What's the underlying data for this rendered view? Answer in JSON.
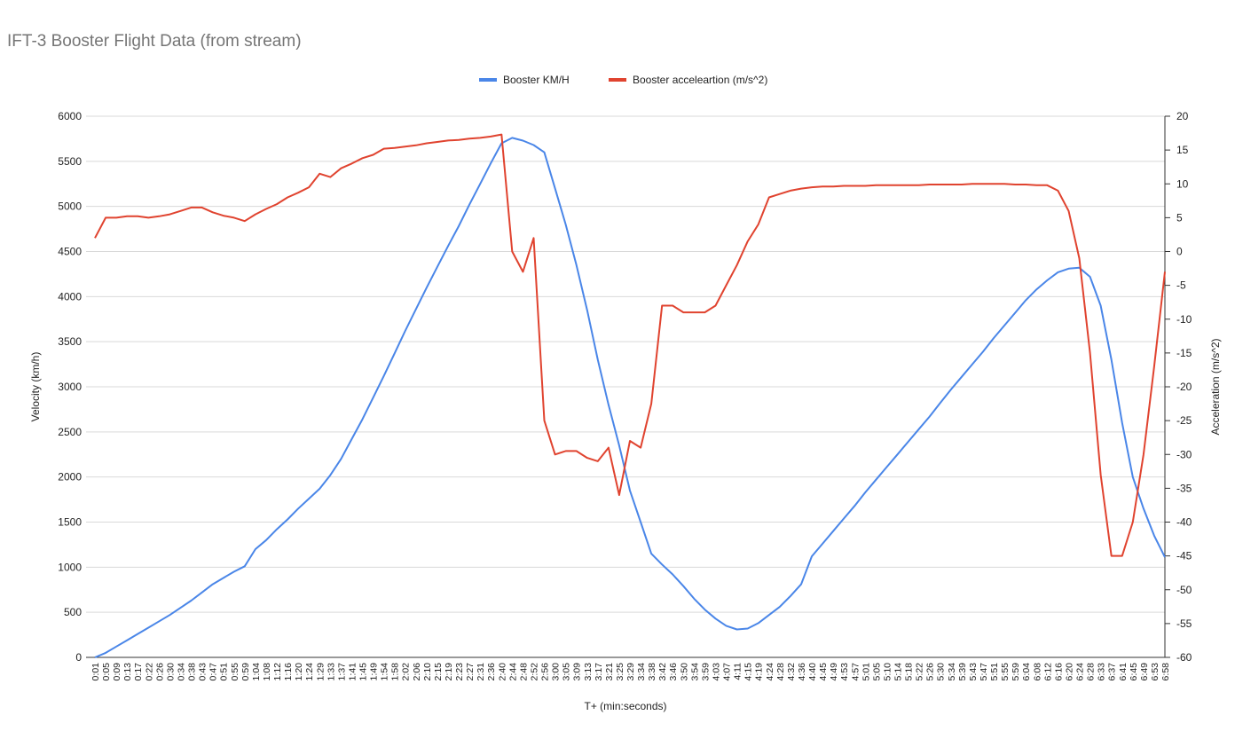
{
  "chart_data": {
    "type": "line",
    "title": "IFT-3 Booster Flight Data (from stream)",
    "x_label": "T+ (min:seconds)",
    "y_label": "Velocity (km/h)",
    "y2_label": "Acceleration (m/s^2)",
    "categories": [
      "0:01",
      "0:05",
      "0:09",
      "0:13",
      "0:17",
      "0:22",
      "0:26",
      "0:30",
      "0:34",
      "0:38",
      "0:43",
      "0:47",
      "0:51",
      "0:55",
      "0:59",
      "1:04",
      "1:08",
      "1:12",
      "1:16",
      "1:20",
      "1:24",
      "1:29",
      "1:33",
      "1:37",
      "1:41",
      "1:45",
      "1:49",
      "1:54",
      "1:58",
      "2:02",
      "2:06",
      "2:10",
      "2:15",
      "2:19",
      "2:23",
      "2:27",
      "2:31",
      "2:36",
      "2:40",
      "2:44",
      "2:48",
      "2:52",
      "2:56",
      "3:00",
      "3:05",
      "3:09",
      "3:13",
      "3:17",
      "3:21",
      "3:25",
      "3:29",
      "3:34",
      "3:38",
      "3:42",
      "3:46",
      "3:50",
      "3:54",
      "3:59",
      "4:03",
      "4:07",
      "4:11",
      "4:15",
      "4:19",
      "4:24",
      "4:28",
      "4:32",
      "4:36",
      "4:40",
      "4:45",
      "4:49",
      "4:53",
      "4:57",
      "5:01",
      "5:05",
      "5:10",
      "5:14",
      "5:18",
      "5:22",
      "5:26",
      "5:30",
      "5:34",
      "5:39",
      "5:43",
      "5:47",
      "5:51",
      "5:55",
      "5:59",
      "6:04",
      "6:08",
      "6:12",
      "6:16",
      "6:20",
      "6:24",
      "6:28",
      "6:33",
      "6:37",
      "6:41",
      "6:45",
      "6:49",
      "6:53",
      "6:58"
    ],
    "series": [
      {
        "name": "Booster KM/H",
        "color": "#4a86e8",
        "axis": "y",
        "values": [
          0,
          50,
          120,
          190,
          260,
          330,
          400,
          470,
          550,
          630,
          720,
          810,
          880,
          950,
          1010,
          1200,
          1300,
          1420,
          1530,
          1650,
          1760,
          1870,
          2020,
          2200,
          2420,
          2640,
          2880,
          3120,
          3370,
          3620,
          3860,
          4100,
          4330,
          4560,
          4780,
          5020,
          5250,
          5480,
          5700,
          5760,
          5730,
          5680,
          5600,
          5200,
          4800,
          4350,
          3850,
          3300,
          2800,
          2350,
          1850,
          1500,
          1150,
          1030,
          920,
          790,
          650,
          530,
          430,
          350,
          310,
          320,
          380,
          470,
          560,
          680,
          810,
          1120,
          1260,
          1400,
          1540,
          1680,
          1830,
          1970,
          2110,
          2250,
          2390,
          2530,
          2670,
          2820,
          2970,
          3110,
          3250,
          3390,
          3540,
          3680,
          3820,
          3960,
          4080,
          4180,
          4270,
          4310,
          4320,
          4220,
          3900,
          3300,
          2600,
          2000,
          1650,
          1350,
          1110
        ]
      },
      {
        "name": "Booster acceleartion (m/s^2)",
        "color": "#e0432f",
        "axis": "y2",
        "values": [
          2,
          5,
          5,
          5.2,
          5.2,
          5,
          5.2,
          5.5,
          6,
          6.5,
          6.5,
          5.8,
          5.3,
          5,
          4.5,
          5.5,
          6.3,
          7,
          8,
          8.7,
          9.5,
          11.5,
          11,
          12.3,
          13,
          13.8,
          14.3,
          15.2,
          15.3,
          15.5,
          15.7,
          16,
          16.2,
          16.4,
          16.5,
          16.7,
          16.8,
          17,
          17.3,
          0,
          -3,
          2,
          -25,
          -30,
          -29.5,
          -29.5,
          -30.5,
          -31,
          -29,
          -36,
          -28,
          -29,
          -22.5,
          -8,
          -8,
          -9,
          -9,
          -9,
          -8,
          -5,
          -2,
          1.5,
          4,
          8,
          8.5,
          9,
          9.3,
          9.5,
          9.6,
          9.6,
          9.7,
          9.7,
          9.7,
          9.8,
          9.8,
          9.8,
          9.8,
          9.8,
          9.9,
          9.9,
          9.9,
          9.9,
          10,
          10,
          10,
          10,
          9.9,
          9.9,
          9.8,
          9.8,
          9,
          6,
          -1,
          -15,
          -33,
          -45,
          -45,
          -40,
          -30,
          -17,
          -3
        ]
      }
    ],
    "ylim": [
      0,
      6000
    ],
    "yticks": [
      0,
      500,
      1000,
      1500,
      2000,
      2500,
      3000,
      3500,
      4000,
      4500,
      5000,
      5500,
      6000
    ],
    "y2lim": [
      -60,
      20
    ],
    "y2ticks": [
      -60,
      -55,
      -50,
      -45,
      -40,
      -35,
      -30,
      -25,
      -20,
      -15,
      -10,
      -5,
      0,
      5,
      10,
      15,
      20
    ],
    "grid": true,
    "legend": "top"
  }
}
